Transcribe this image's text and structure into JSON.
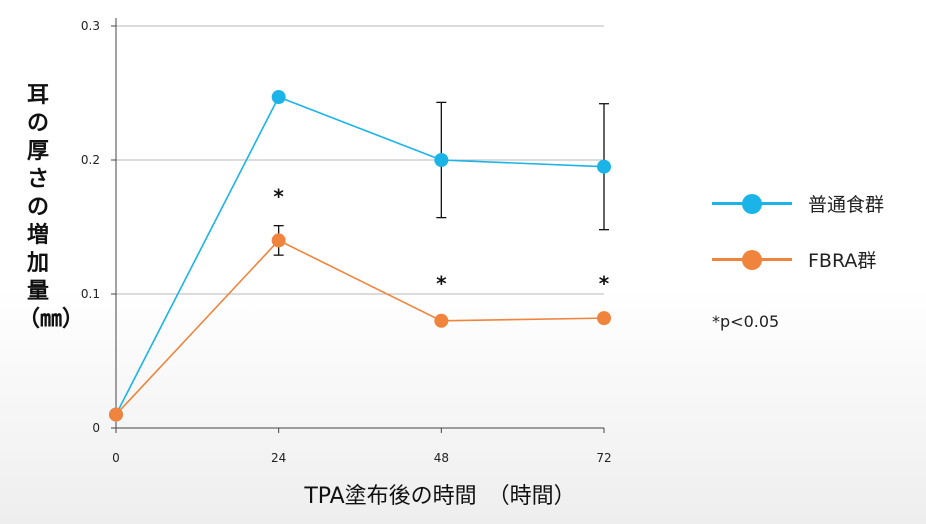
{
  "chart_data": {
    "type": "line",
    "title": "",
    "xlabel": "TPA塗布後の時間　（時間）",
    "ylabel": "耳の厚さの増加量（㎜）",
    "x": [
      0,
      24,
      48,
      72
    ],
    "xticks": [
      "0",
      "24",
      "48",
      "72"
    ],
    "yticks": [
      "0",
      "0.1",
      "0.2",
      "0.3"
    ],
    "ylim": [
      0,
      0.3
    ],
    "grid": "horizontal",
    "legend_position": "right",
    "series": [
      {
        "name": "普通食群",
        "color": "#1ab4e8",
        "values": [
          0.01,
          0.247,
          0.2,
          0.195
        ],
        "error": [
          null,
          null,
          0.043,
          0.047
        ]
      },
      {
        "name": "FBRA群",
        "color": "#f0843c",
        "values": [
          0.01,
          0.14,
          0.08,
          0.082
        ],
        "error": [
          null,
          0.011,
          null,
          null
        ]
      }
    ],
    "annotations": [
      {
        "x": 24,
        "y": 0.175,
        "text": "*"
      },
      {
        "x": 48,
        "y": 0.11,
        "text": "*"
      },
      {
        "x": 72,
        "y": 0.11,
        "text": "*"
      }
    ],
    "note": "*p<0.05"
  }
}
